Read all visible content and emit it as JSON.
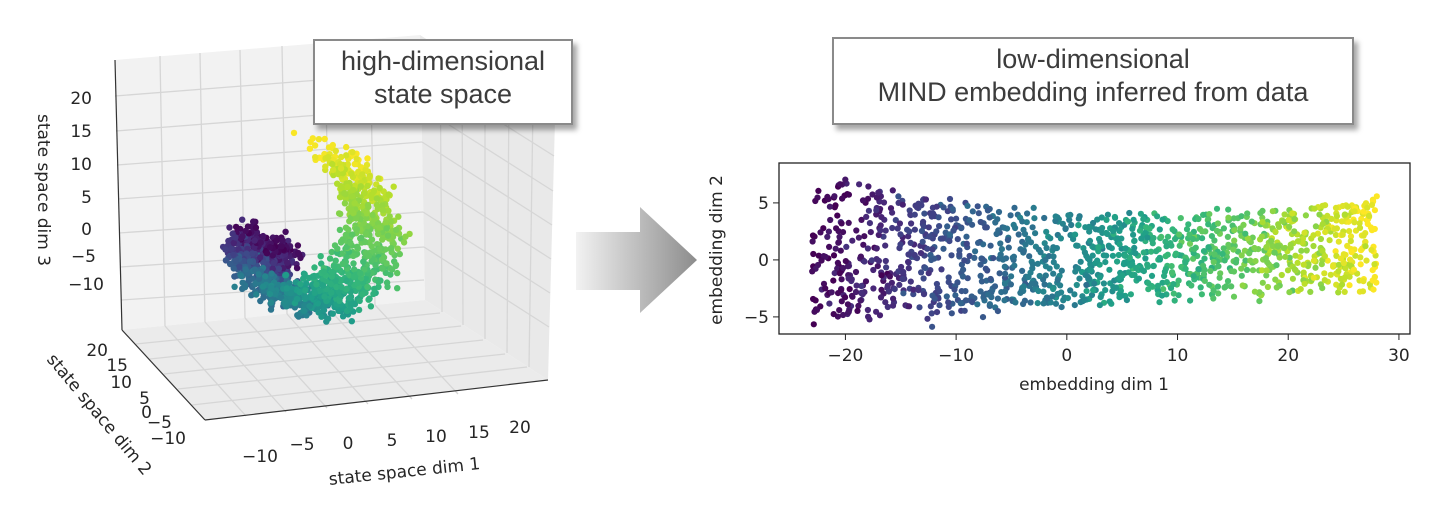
{
  "callouts": {
    "left": {
      "line1": "high-dimensional",
      "line2": "state space"
    },
    "right": {
      "line1": "low-dimensional",
      "line2": "MIND embedding inferred from data"
    }
  },
  "arrow": {
    "icon": "right-arrow-icon",
    "gradient": [
      "#f2f2f2",
      "#8c8c8c"
    ]
  },
  "colormap": "viridis",
  "chart_data": [
    {
      "type": "scatter",
      "projection": "3d",
      "title": "",
      "xlabel": "state space dim 1",
      "ylabel": "state space dim 2",
      "zlabel": "state space dim 3",
      "xticks": [
        "−10",
        "−5",
        "0",
        "5",
        "10",
        "15",
        "20"
      ],
      "yticks": [
        "−10",
        "−5",
        "0",
        "5",
        "10",
        "15",
        "20"
      ],
      "zticks": [
        "−10",
        "−5",
        "0",
        "5",
        "10",
        "15",
        "20"
      ],
      "xlim": [
        -12,
        25
      ],
      "ylim": [
        -12,
        22
      ],
      "zlim": [
        -13,
        23
      ],
      "grid": true,
      "shape": "swiss roll: spiral in the dim1/dim3 plane from center (~0,-3) outward to (~15,15), extruded along dim 2; colour follows position along the spiral",
      "color_scale": [
        0,
        1
      ],
      "points_approx": 3000
    },
    {
      "type": "scatter",
      "title": "",
      "xlabel": "embedding dim 1",
      "ylabel": "embedding dim 2",
      "xticks": [
        "−20",
        "−10",
        "0",
        "10",
        "20",
        "30"
      ],
      "yticks": [
        "−5",
        "0",
        "5"
      ],
      "xlim": [
        -26,
        31
      ],
      "ylim": [
        -6.5,
        8.5
      ],
      "grid": false,
      "shape": "elongated band from x≈-23 to x≈28, y from about -6 to 8 on the left narrowing to about -3 to 5 on the right",
      "series": [
        {
          "point": [
            -23,
            0
          ]
        },
        {
          "point": [
            -22.5,
            6
          ]
        },
        {
          "point": [
            -21,
            7.6
          ]
        },
        {
          "point": [
            -20,
            -5
          ]
        },
        {
          "point": [
            -15,
            4.5
          ]
        },
        {
          "point": [
            -10,
            5.2
          ]
        },
        {
          "point": [
            -5,
            -4.5
          ]
        },
        {
          "point": [
            0,
            3
          ]
        },
        {
          "point": [
            5,
            -3.5
          ]
        },
        {
          "point": [
            10,
            4
          ]
        },
        {
          "point": [
            15,
            -3
          ]
        },
        {
          "point": [
            20,
            4.5
          ]
        },
        {
          "point": [
            25,
            5.5
          ]
        },
        {
          "point": [
            27.5,
            1
          ]
        },
        {
          "point": [
            26,
            -2.5
          ]
        }
      ],
      "color_scale": [
        0,
        1
      ],
      "points_approx": 1400
    }
  ]
}
